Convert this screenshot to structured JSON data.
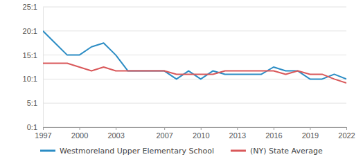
{
  "chart_data": {
    "type": "line",
    "x": [
      1997,
      1998,
      1999,
      2000,
      2001,
      2002,
      2003,
      2004,
      2005,
      2006,
      2007,
      2008,
      2009,
      2010,
      2011,
      2012,
      2013,
      2014,
      2015,
      2016,
      2017,
      2018,
      2019,
      2020,
      2021,
      2022
    ],
    "series": [
      {
        "name": "Westmoreland Upper Elementary School",
        "color": "#2b8cc4",
        "values": [
          20,
          17.5,
          15,
          15,
          16.7,
          17.5,
          15,
          11.7,
          11.7,
          11.7,
          11.7,
          10,
          11.7,
          10,
          11.7,
          11,
          11,
          11,
          11,
          12.5,
          11.7,
          11.7,
          10,
          10,
          11,
          10
        ]
      },
      {
        "name": "(NY) State Average",
        "color": "#d9585a",
        "values": [
          13.3,
          13.3,
          13.3,
          12.5,
          11.7,
          12.5,
          11.7,
          11.7,
          11.7,
          11.7,
          11.7,
          11,
          11,
          11,
          11,
          11.7,
          11.7,
          11.7,
          11.7,
          11.7,
          11,
          11.7,
          11,
          11,
          10,
          9.2
        ]
      }
    ],
    "xlim": [
      1997,
      2022
    ],
    "xticks": [
      1997,
      2000,
      2003,
      2007,
      2010,
      2013,
      2016,
      2019,
      2022
    ],
    "ylim": [
      0,
      25
    ],
    "yticks": [
      {
        "value": 0,
        "label": "0:1"
      },
      {
        "value": 5,
        "label": "5:1"
      },
      {
        "value": 10,
        "label": "10:1"
      },
      {
        "value": 15,
        "label": "15:1"
      },
      {
        "value": 20,
        "label": "20:1"
      },
      {
        "value": 25,
        "label": "25:1"
      }
    ],
    "grid": true,
    "legend": "bottom"
  }
}
